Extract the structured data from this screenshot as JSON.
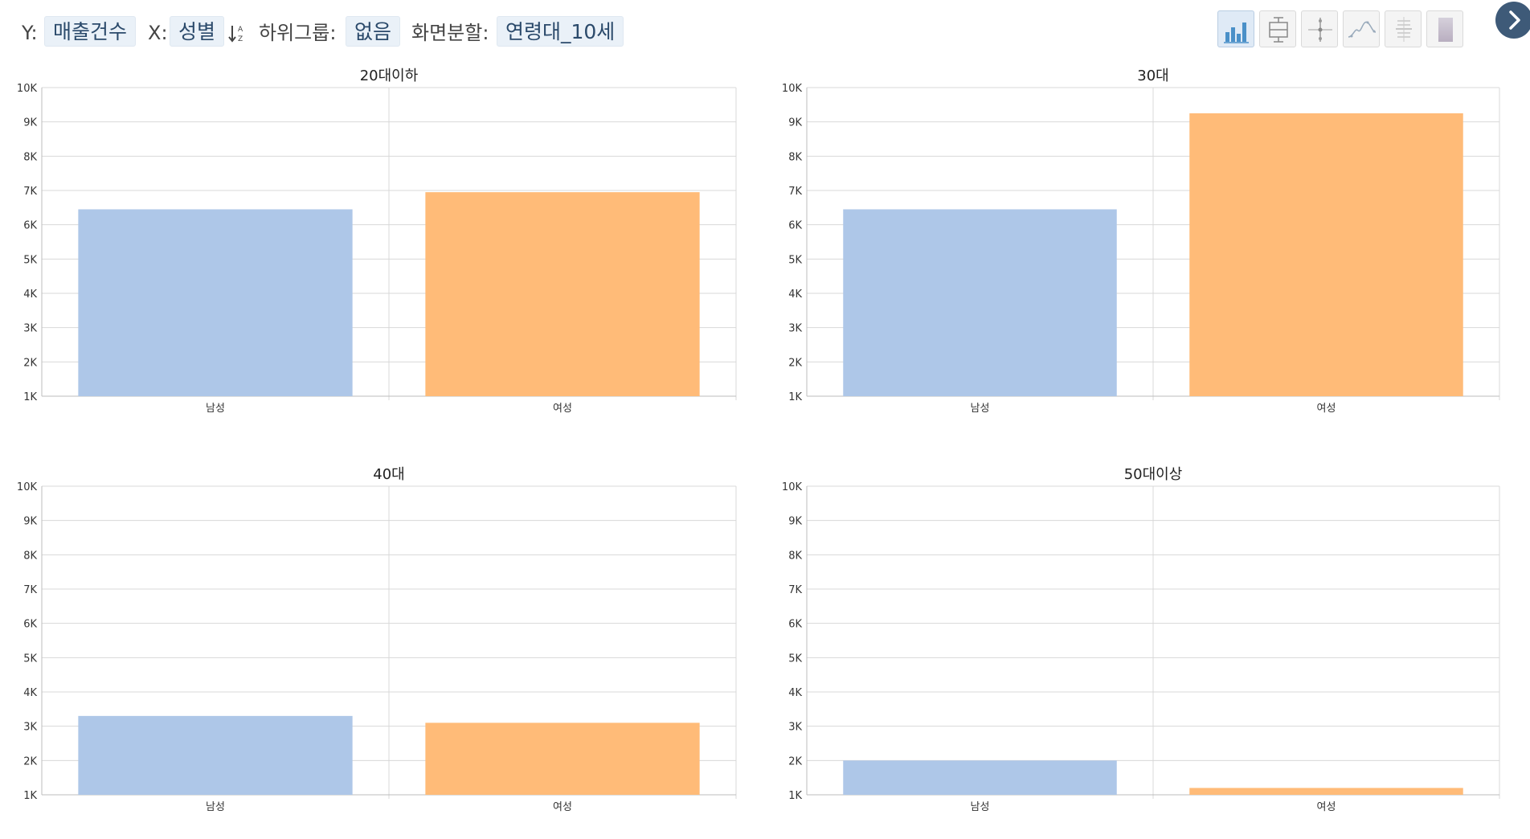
{
  "toolbar": {
    "y_label": "Y:",
    "y_value": "매출건수",
    "x_label": "X:",
    "x_value": "성별",
    "subgroup_label": "하위그룹:",
    "subgroup_value": "없음",
    "split_label": "화면분할:",
    "split_value": "연령대_10세",
    "buttons": [
      {
        "name": "bar-chart",
        "active": true
      },
      {
        "name": "box-plot",
        "active": false
      },
      {
        "name": "error-bar",
        "active": false
      },
      {
        "name": "density-curve",
        "active": false
      },
      {
        "name": "dot-strip",
        "active": false
      },
      {
        "name": "gradient-bar",
        "active": false
      }
    ]
  },
  "colors": {
    "male": "#aec7e8",
    "female": "#ffbb78",
    "grid": "#d8d8d8",
    "axis": "#bdbdbd",
    "accent": "#3e5a78"
  },
  "chart_data": [
    {
      "type": "bar",
      "title": "20대이하",
      "categories": [
        "남성",
        "여성"
      ],
      "values": [
        6450,
        6950
      ],
      "ylim": [
        1000,
        10000
      ],
      "yticks": [
        "1K",
        "2K",
        "3K",
        "4K",
        "5K",
        "6K",
        "7K",
        "8K",
        "9K",
        "10K"
      ],
      "grid": true,
      "xlabel": "",
      "ylabel": ""
    },
    {
      "type": "bar",
      "title": "30대",
      "categories": [
        "남성",
        "여성"
      ],
      "values": [
        6450,
        9250
      ],
      "ylim": [
        1000,
        10000
      ],
      "yticks": [
        "1K",
        "2K",
        "3K",
        "4K",
        "5K",
        "6K",
        "7K",
        "8K",
        "9K",
        "10K"
      ],
      "grid": true,
      "xlabel": "",
      "ylabel": ""
    },
    {
      "type": "bar",
      "title": "40대",
      "categories": [
        "남성",
        "여성"
      ],
      "values": [
        3300,
        3100
      ],
      "ylim": [
        1000,
        10000
      ],
      "yticks": [
        "1K",
        "2K",
        "3K",
        "4K",
        "5K",
        "6K",
        "7K",
        "8K",
        "9K",
        "10K"
      ],
      "grid": true,
      "xlabel": "",
      "ylabel": ""
    },
    {
      "type": "bar",
      "title": "50대이상",
      "categories": [
        "남성",
        "여성"
      ],
      "values": [
        2000,
        1200
      ],
      "ylim": [
        1000,
        10000
      ],
      "yticks": [
        "1K",
        "2K",
        "3K",
        "4K",
        "5K",
        "6K",
        "7K",
        "8K",
        "9K",
        "10K"
      ],
      "grid": true,
      "xlabel": "",
      "ylabel": ""
    }
  ]
}
